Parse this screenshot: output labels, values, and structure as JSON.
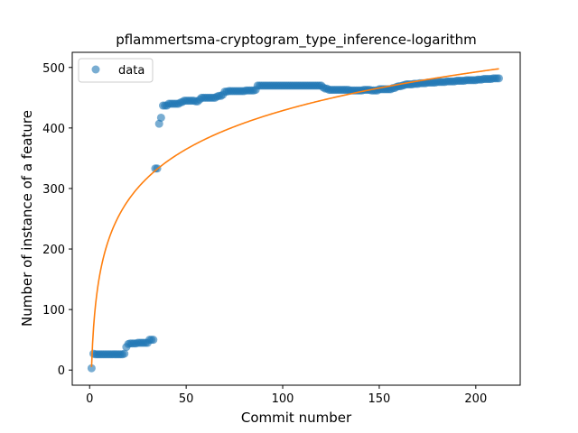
{
  "chart_data": {
    "type": "scatter",
    "title": "pflammertsma-cryptogram_type_inference-logarithm",
    "xlabel": "Commit number",
    "ylabel": "Number of instance of a feature",
    "xlim": [
      -9,
      223
    ],
    "ylim": [
      -25,
      525
    ],
    "xticks": [
      0,
      50,
      100,
      150,
      200
    ],
    "yticks": [
      0,
      100,
      200,
      300,
      400,
      500
    ],
    "grid": false,
    "legend": {
      "placement": "top-left",
      "entries": [
        "data"
      ]
    },
    "colors": {
      "data": "#1f77b4",
      "fit": "#ff7f0e"
    },
    "series": [
      {
        "name": "data",
        "kind": "scatter",
        "points": [
          [
            1,
            3
          ],
          [
            2,
            27
          ],
          [
            3,
            26
          ],
          [
            4,
            26
          ],
          [
            5,
            26
          ],
          [
            6,
            26
          ],
          [
            7,
            26
          ],
          [
            8,
            26
          ],
          [
            9,
            26
          ],
          [
            10,
            26
          ],
          [
            11,
            26
          ],
          [
            12,
            26
          ],
          [
            13,
            26
          ],
          [
            14,
            26
          ],
          [
            15,
            26
          ],
          [
            16,
            26
          ],
          [
            17,
            26
          ],
          [
            18,
            27
          ],
          [
            19,
            38
          ],
          [
            20,
            43
          ],
          [
            21,
            44
          ],
          [
            22,
            44
          ],
          [
            23,
            44
          ],
          [
            24,
            44
          ],
          [
            25,
            45
          ],
          [
            26,
            45
          ],
          [
            27,
            45
          ],
          [
            28,
            45
          ],
          [
            29,
            45
          ],
          [
            30,
            45
          ],
          [
            31,
            50
          ],
          [
            32,
            50
          ],
          [
            33,
            50
          ],
          [
            34,
            333
          ],
          [
            35,
            333
          ],
          [
            36,
            407
          ],
          [
            37,
            417
          ],
          [
            38,
            437
          ],
          [
            39,
            437
          ],
          [
            40,
            437
          ],
          [
            41,
            440
          ],
          [
            42,
            440
          ],
          [
            43,
            440
          ],
          [
            44,
            440
          ],
          [
            45,
            440
          ],
          [
            46,
            440
          ],
          [
            47,
            442
          ],
          [
            48,
            443
          ],
          [
            49,
            445
          ],
          [
            50,
            445
          ],
          [
            51,
            445
          ],
          [
            52,
            445
          ],
          [
            53,
            445
          ],
          [
            54,
            445
          ],
          [
            55,
            444
          ],
          [
            56,
            444
          ],
          [
            57,
            447
          ],
          [
            58,
            450
          ],
          [
            59,
            450
          ],
          [
            60,
            450
          ],
          [
            61,
            450
          ],
          [
            62,
            450
          ],
          [
            63,
            450
          ],
          [
            64,
            450
          ],
          [
            65,
            450
          ],
          [
            66,
            452
          ],
          [
            67,
            453
          ],
          [
            68,
            453
          ],
          [
            69,
            455
          ],
          [
            70,
            460
          ],
          [
            71,
            460
          ],
          [
            72,
            461
          ],
          [
            73,
            461
          ],
          [
            74,
            461
          ],
          [
            75,
            461
          ],
          [
            76,
            461
          ],
          [
            77,
            461
          ],
          [
            78,
            461
          ],
          [
            79,
            461
          ],
          [
            80,
            461
          ],
          [
            81,
            462
          ],
          [
            82,
            462
          ],
          [
            83,
            462
          ],
          [
            84,
            462
          ],
          [
            85,
            462
          ],
          [
            86,
            463
          ],
          [
            87,
            470
          ],
          [
            88,
            470
          ],
          [
            89,
            470
          ],
          [
            90,
            470
          ],
          [
            91,
            470
          ],
          [
            92,
            470
          ],
          [
            93,
            470
          ],
          [
            94,
            470
          ],
          [
            95,
            470
          ],
          [
            96,
            470
          ],
          [
            97,
            470
          ],
          [
            98,
            470
          ],
          [
            99,
            470
          ],
          [
            100,
            470
          ],
          [
            101,
            470
          ],
          [
            102,
            470
          ],
          [
            103,
            470
          ],
          [
            104,
            470
          ],
          [
            105,
            470
          ],
          [
            106,
            470
          ],
          [
            107,
            470
          ],
          [
            108,
            470
          ],
          [
            109,
            470
          ],
          [
            110,
            470
          ],
          [
            111,
            470
          ],
          [
            112,
            470
          ],
          [
            113,
            470
          ],
          [
            114,
            470
          ],
          [
            115,
            470
          ],
          [
            116,
            470
          ],
          [
            117,
            470
          ],
          [
            118,
            470
          ],
          [
            119,
            470
          ],
          [
            120,
            470
          ],
          [
            121,
            467
          ],
          [
            122,
            465
          ],
          [
            123,
            465
          ],
          [
            124,
            463
          ],
          [
            125,
            463
          ],
          [
            126,
            463
          ],
          [
            127,
            463
          ],
          [
            128,
            463
          ],
          [
            129,
            463
          ],
          [
            130,
            463
          ],
          [
            131,
            463
          ],
          [
            132,
            463
          ],
          [
            133,
            463
          ],
          [
            134,
            463
          ],
          [
            135,
            462
          ],
          [
            136,
            462
          ],
          [
            137,
            462
          ],
          [
            138,
            462
          ],
          [
            139,
            462
          ],
          [
            140,
            462
          ],
          [
            141,
            462
          ],
          [
            142,
            463
          ],
          [
            143,
            463
          ],
          [
            144,
            463
          ],
          [
            145,
            463
          ],
          [
            146,
            462
          ],
          [
            147,
            462
          ],
          [
            148,
            462
          ],
          [
            149,
            462
          ],
          [
            150,
            464
          ],
          [
            151,
            464
          ],
          [
            152,
            464
          ],
          [
            153,
            464
          ],
          [
            154,
            464
          ],
          [
            155,
            464
          ],
          [
            156,
            464
          ],
          [
            157,
            466
          ],
          [
            158,
            466
          ],
          [
            159,
            468
          ],
          [
            160,
            469
          ],
          [
            161,
            469
          ],
          [
            162,
            470
          ],
          [
            163,
            471
          ],
          [
            164,
            472
          ],
          [
            165,
            472
          ],
          [
            166,
            472
          ],
          [
            167,
            472
          ],
          [
            168,
            473
          ],
          [
            169,
            473
          ],
          [
            170,
            473
          ],
          [
            171,
            474
          ],
          [
            172,
            474
          ],
          [
            173,
            474
          ],
          [
            174,
            474
          ],
          [
            175,
            475
          ],
          [
            176,
            475
          ],
          [
            177,
            475
          ],
          [
            178,
            475
          ],
          [
            179,
            475
          ],
          [
            180,
            476
          ],
          [
            181,
            476
          ],
          [
            182,
            476
          ],
          [
            183,
            476
          ],
          [
            184,
            476
          ],
          [
            185,
            477
          ],
          [
            186,
            477
          ],
          [
            187,
            477
          ],
          [
            188,
            477
          ],
          [
            189,
            477
          ],
          [
            190,
            478
          ],
          [
            191,
            478
          ],
          [
            192,
            478
          ],
          [
            193,
            478
          ],
          [
            194,
            478
          ],
          [
            195,
            479
          ],
          [
            196,
            479
          ],
          [
            197,
            479
          ],
          [
            198,
            479
          ],
          [
            199,
            479
          ],
          [
            200,
            479
          ],
          [
            201,
            480
          ],
          [
            202,
            480
          ],
          [
            203,
            480
          ],
          [
            204,
            481
          ],
          [
            205,
            481
          ],
          [
            206,
            481
          ],
          [
            207,
            481
          ],
          [
            208,
            481
          ],
          [
            209,
            482
          ],
          [
            210,
            482
          ],
          [
            211,
            482
          ],
          [
            212,
            482
          ]
        ]
      },
      {
        "kind": "line",
        "function": "a + b*ln(x)",
        "a": 5,
        "b": 92,
        "x_range": [
          1,
          212
        ]
      }
    ]
  }
}
